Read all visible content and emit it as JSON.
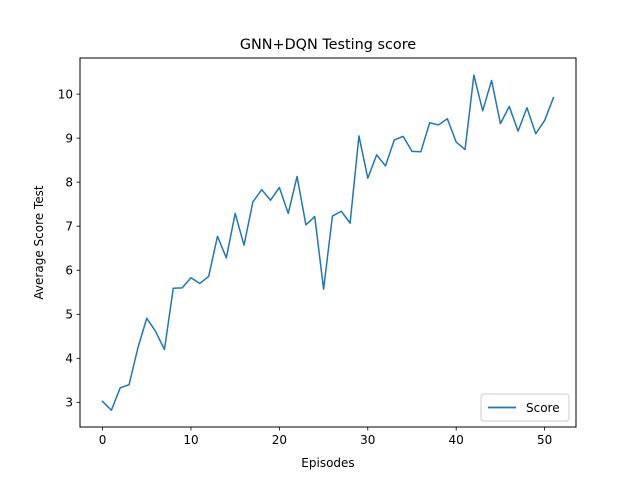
{
  "chart_data": {
    "type": "line",
    "title": "GNN+DQN Testing score",
    "xlabel": "Episodes",
    "ylabel": "Average Score Test",
    "xlim": [
      -2.55,
      53.55
    ],
    "ylim": [
      2.44,
      10.82
    ],
    "xticks": [
      0,
      10,
      20,
      30,
      40,
      50
    ],
    "yticks": [
      3,
      4,
      5,
      6,
      7,
      8,
      9,
      10
    ],
    "grid": false,
    "legend": {
      "placement": "lower-right"
    },
    "series": [
      {
        "name": "Score",
        "color": "#1f77b4",
        "x": [
          0,
          1,
          2,
          3,
          4,
          5,
          6,
          7,
          8,
          9,
          10,
          11,
          12,
          13,
          14,
          15,
          16,
          17,
          18,
          19,
          20,
          21,
          22,
          23,
          24,
          25,
          26,
          27,
          28,
          29,
          30,
          31,
          32,
          33,
          34,
          35,
          36,
          37,
          38,
          39,
          40,
          41,
          42,
          43,
          44,
          45,
          46,
          47,
          48,
          49,
          50,
          51
        ],
        "values": [
          3.02,
          2.82,
          3.33,
          3.4,
          4.24,
          4.91,
          4.61,
          4.2,
          5.59,
          5.6,
          5.83,
          5.7,
          5.86,
          6.77,
          6.28,
          7.29,
          6.57,
          7.55,
          7.83,
          7.59,
          7.88,
          7.29,
          8.13,
          7.03,
          7.22,
          5.57,
          7.23,
          7.34,
          7.07,
          9.05,
          8.09,
          8.62,
          8.37,
          8.96,
          9.04,
          8.7,
          8.69,
          9.35,
          9.3,
          9.44,
          8.91,
          8.74,
          10.43,
          9.62,
          10.31,
          9.33,
          9.72,
          9.16,
          9.69,
          9.1,
          9.4,
          9.92
        ]
      }
    ]
  }
}
